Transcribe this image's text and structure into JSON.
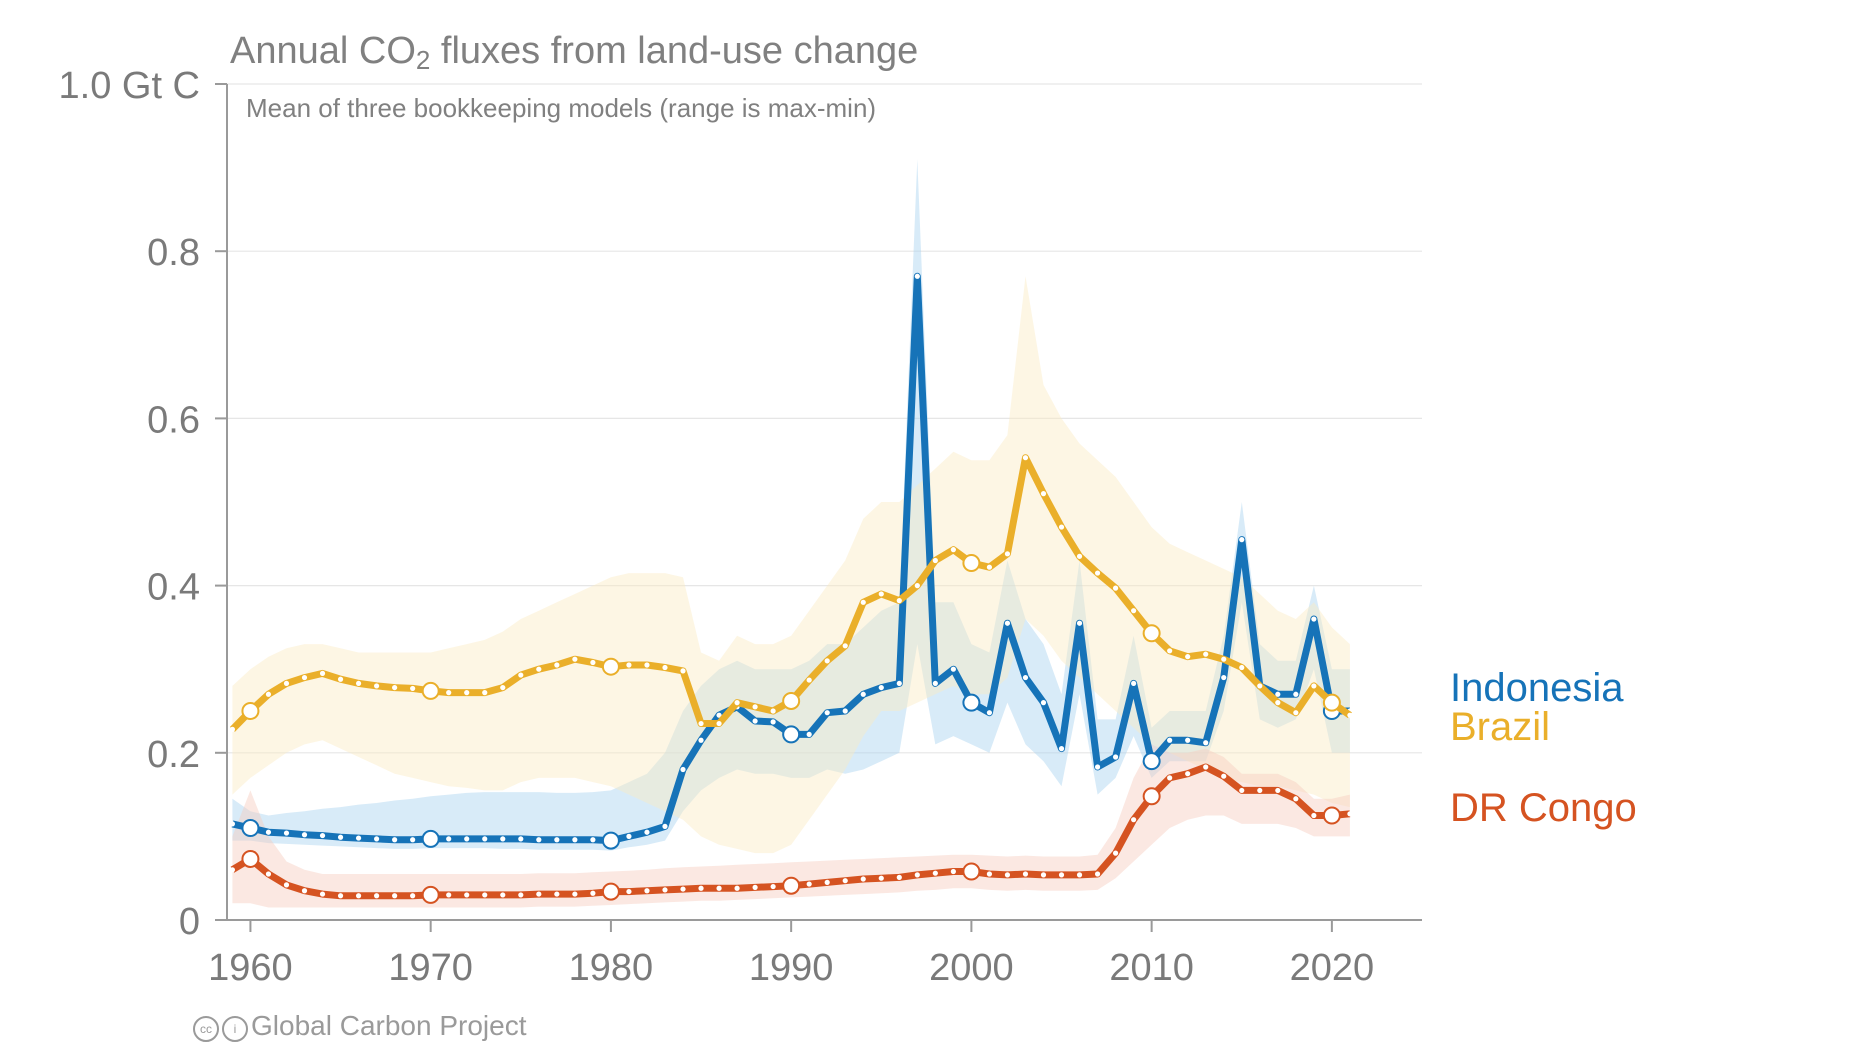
{
  "title_main": "Annual CO",
  "title_sub": "2",
  "title_rest": " fluxes from land-use change",
  "subtitle": "Mean of three bookkeeping models (range is max-min)",
  "credit": "Global Carbon Project",
  "credit_icons": [
    "cc-icon",
    "by-icon"
  ],
  "chart_data": {
    "type": "line",
    "title": "Annual CO2 fluxes from land-use change",
    "subtitle": "Mean of three bookkeeping models (range is max-min)",
    "ylabel": "Gt C",
    "xlim": [
      1958.7,
      2025
    ],
    "ylim": [
      0,
      1.0
    ],
    "x_ticks": [
      1960,
      1970,
      1980,
      1990,
      2000,
      2010,
      2020
    ],
    "y_ticks": [
      0,
      0.2,
      0.4,
      0.6,
      0.8,
      1.0
    ],
    "y_tick_labels": [
      "0",
      "0.2",
      "0.4",
      "0.6",
      "0.8",
      "1.0 Gt C"
    ],
    "grid": true,
    "legend": "right",
    "x": [
      1959,
      1960,
      1961,
      1962,
      1963,
      1964,
      1965,
      1966,
      1967,
      1968,
      1969,
      1970,
      1971,
      1972,
      1973,
      1974,
      1975,
      1976,
      1977,
      1978,
      1979,
      1980,
      1981,
      1982,
      1983,
      1984,
      1985,
      1986,
      1987,
      1988,
      1989,
      1990,
      1991,
      1992,
      1993,
      1994,
      1995,
      1996,
      1997,
      1998,
      1999,
      2000,
      2001,
      2002,
      2003,
      2004,
      2005,
      2006,
      2007,
      2008,
      2009,
      2010,
      2011,
      2012,
      2013,
      2014,
      2015,
      2016,
      2017,
      2018,
      2019,
      2020,
      2021
    ],
    "series": [
      {
        "name": "Indonesia",
        "color": "#1673b8",
        "band_color": "#a9d3f0",
        "values": [
          0.115,
          0.11,
          0.105,
          0.104,
          0.102,
          0.101,
          0.099,
          0.098,
          0.097,
          0.096,
          0.096,
          0.097,
          0.097,
          0.097,
          0.097,
          0.097,
          0.097,
          0.096,
          0.096,
          0.096,
          0.096,
          0.095,
          0.1,
          0.105,
          0.112,
          0.18,
          0.215,
          0.245,
          0.255,
          0.238,
          0.237,
          0.222,
          0.222,
          0.248,
          0.25,
          0.27,
          0.278,
          0.283,
          0.77,
          0.283,
          0.3,
          0.26,
          0.248,
          0.355,
          0.29,
          0.26,
          0.205,
          0.355,
          0.183,
          0.195,
          0.283,
          0.19,
          0.215,
          0.215,
          0.212,
          0.29,
          0.455,
          0.28,
          0.27,
          0.27,
          0.36,
          0.25,
          0.25
        ],
        "range_min": [
          0.095,
          0.095,
          0.092,
          0.091,
          0.09,
          0.089,
          0.088,
          0.087,
          0.086,
          0.085,
          0.085,
          0.086,
          0.086,
          0.086,
          0.086,
          0.085,
          0.085,
          0.084,
          0.084,
          0.084,
          0.084,
          0.083,
          0.087,
          0.09,
          0.095,
          0.13,
          0.155,
          0.17,
          0.18,
          0.175,
          0.175,
          0.17,
          0.17,
          0.18,
          0.175,
          0.18,
          0.19,
          0.2,
          0.33,
          0.21,
          0.22,
          0.21,
          0.2,
          0.26,
          0.21,
          0.19,
          0.16,
          0.27,
          0.15,
          0.17,
          0.22,
          0.17,
          0.19,
          0.19,
          0.19,
          0.25,
          0.38,
          0.24,
          0.23,
          0.24,
          0.3,
          0.2,
          0.2
        ],
        "range_max": [
          0.145,
          0.13,
          0.125,
          0.128,
          0.13,
          0.133,
          0.135,
          0.138,
          0.14,
          0.143,
          0.145,
          0.148,
          0.15,
          0.152,
          0.153,
          0.153,
          0.153,
          0.153,
          0.152,
          0.152,
          0.153,
          0.155,
          0.165,
          0.175,
          0.2,
          0.25,
          0.28,
          0.3,
          0.31,
          0.3,
          0.3,
          0.3,
          0.31,
          0.33,
          0.33,
          0.35,
          0.37,
          0.38,
          0.91,
          0.38,
          0.38,
          0.33,
          0.32,
          0.43,
          0.36,
          0.33,
          0.27,
          0.43,
          0.24,
          0.24,
          0.34,
          0.23,
          0.25,
          0.25,
          0.25,
          0.34,
          0.5,
          0.33,
          0.31,
          0.31,
          0.4,
          0.3,
          0.3
        ]
      },
      {
        "name": "Brazil",
        "color": "#eaaf2a",
        "band_color": "#fbeac3",
        "values": [
          0.228,
          0.25,
          0.27,
          0.283,
          0.29,
          0.295,
          0.288,
          0.283,
          0.28,
          0.278,
          0.277,
          0.274,
          0.272,
          0.272,
          0.272,
          0.278,
          0.293,
          0.3,
          0.305,
          0.312,
          0.308,
          0.303,
          0.305,
          0.305,
          0.302,
          0.298,
          0.235,
          0.235,
          0.26,
          0.255,
          0.25,
          0.262,
          0.287,
          0.31,
          0.328,
          0.38,
          0.39,
          0.382,
          0.4,
          0.43,
          0.443,
          0.427,
          0.422,
          0.438,
          0.553,
          0.51,
          0.47,
          0.435,
          0.415,
          0.397,
          0.37,
          0.343,
          0.322,
          0.315,
          0.318,
          0.312,
          0.302,
          0.28,
          0.26,
          0.248,
          0.28,
          0.26,
          0.245
        ],
        "range_min": [
          0.15,
          0.17,
          0.185,
          0.2,
          0.21,
          0.215,
          0.205,
          0.195,
          0.185,
          0.175,
          0.17,
          0.165,
          0.16,
          0.158,
          0.155,
          0.155,
          0.165,
          0.17,
          0.17,
          0.17,
          0.165,
          0.16,
          0.15,
          0.14,
          0.13,
          0.12,
          0.1,
          0.09,
          0.085,
          0.08,
          0.08,
          0.09,
          0.12,
          0.15,
          0.18,
          0.22,
          0.25,
          0.25,
          0.26,
          0.27,
          0.28,
          0.27,
          0.27,
          0.29,
          0.36,
          0.34,
          0.31,
          0.29,
          0.27,
          0.25,
          0.23,
          0.21,
          0.2,
          0.19,
          0.18,
          0.17,
          0.165,
          0.16,
          0.16,
          0.155,
          0.15,
          0.14,
          0.135
        ],
        "range_max": [
          0.28,
          0.3,
          0.315,
          0.325,
          0.33,
          0.33,
          0.325,
          0.32,
          0.32,
          0.32,
          0.32,
          0.32,
          0.325,
          0.33,
          0.335,
          0.345,
          0.36,
          0.37,
          0.38,
          0.39,
          0.4,
          0.41,
          0.415,
          0.415,
          0.415,
          0.41,
          0.32,
          0.31,
          0.34,
          0.33,
          0.33,
          0.34,
          0.37,
          0.4,
          0.43,
          0.48,
          0.5,
          0.5,
          0.52,
          0.54,
          0.56,
          0.55,
          0.55,
          0.58,
          0.77,
          0.64,
          0.6,
          0.57,
          0.55,
          0.53,
          0.5,
          0.47,
          0.45,
          0.44,
          0.43,
          0.42,
          0.41,
          0.39,
          0.37,
          0.36,
          0.38,
          0.35,
          0.33
        ]
      },
      {
        "name": "DR Congo",
        "color": "#d55321",
        "band_color": "#f6cdbf",
        "values": [
          0.06,
          0.073,
          0.055,
          0.042,
          0.035,
          0.031,
          0.029,
          0.029,
          0.029,
          0.029,
          0.029,
          0.03,
          0.03,
          0.03,
          0.03,
          0.03,
          0.03,
          0.031,
          0.031,
          0.031,
          0.032,
          0.034,
          0.034,
          0.035,
          0.036,
          0.037,
          0.038,
          0.038,
          0.038,
          0.039,
          0.04,
          0.041,
          0.043,
          0.045,
          0.047,
          0.049,
          0.05,
          0.051,
          0.054,
          0.056,
          0.058,
          0.058,
          0.055,
          0.054,
          0.055,
          0.054,
          0.054,
          0.054,
          0.055,
          0.08,
          0.12,
          0.148,
          0.17,
          0.175,
          0.183,
          0.172,
          0.155,
          0.155,
          0.155,
          0.145,
          0.125,
          0.125,
          0.127
        ],
        "range_min": [
          0.02,
          0.02,
          0.015,
          0.015,
          0.015,
          0.015,
          0.015,
          0.015,
          0.015,
          0.015,
          0.015,
          0.015,
          0.015,
          0.015,
          0.015,
          0.015,
          0.015,
          0.016,
          0.016,
          0.016,
          0.017,
          0.018,
          0.019,
          0.02,
          0.021,
          0.022,
          0.023,
          0.023,
          0.024,
          0.025,
          0.026,
          0.027,
          0.028,
          0.029,
          0.03,
          0.031,
          0.032,
          0.033,
          0.035,
          0.036,
          0.038,
          0.038,
          0.036,
          0.035,
          0.036,
          0.035,
          0.035,
          0.035,
          0.036,
          0.05,
          0.07,
          0.09,
          0.11,
          0.12,
          0.125,
          0.125,
          0.115,
          0.115,
          0.115,
          0.11,
          0.1,
          0.1,
          0.1
        ],
        "range_max": [
          0.1,
          0.155,
          0.1,
          0.07,
          0.06,
          0.055,
          0.055,
          0.055,
          0.055,
          0.055,
          0.055,
          0.055,
          0.055,
          0.055,
          0.055,
          0.055,
          0.055,
          0.056,
          0.056,
          0.056,
          0.057,
          0.058,
          0.059,
          0.06,
          0.062,
          0.063,
          0.064,
          0.065,
          0.066,
          0.067,
          0.068,
          0.069,
          0.07,
          0.071,
          0.072,
          0.073,
          0.074,
          0.075,
          0.076,
          0.077,
          0.078,
          0.078,
          0.077,
          0.076,
          0.077,
          0.076,
          0.076,
          0.076,
          0.078,
          0.11,
          0.17,
          0.21,
          0.2,
          0.2,
          0.205,
          0.195,
          0.175,
          0.175,
          0.175,
          0.165,
          0.145,
          0.145,
          0.15
        ]
      }
    ]
  }
}
